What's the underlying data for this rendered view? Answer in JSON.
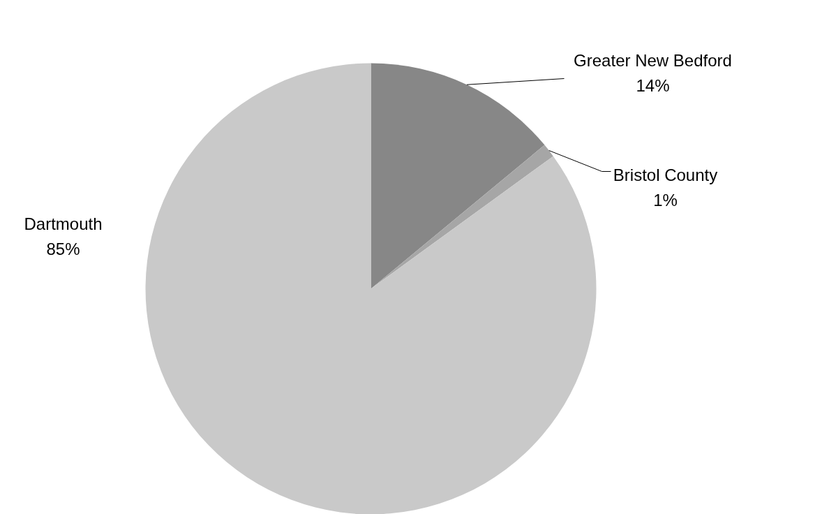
{
  "chart_data": {
    "type": "pie",
    "categories": [
      "Greater New Bedford",
      "Bristol County",
      "Dartmouth"
    ],
    "values": [
      14,
      1,
      85
    ],
    "colors": [
      "#878787",
      "#a6a6a6",
      "#c9c9c9"
    ],
    "value_labels": [
      "14%",
      "1%",
      "85%"
    ]
  }
}
